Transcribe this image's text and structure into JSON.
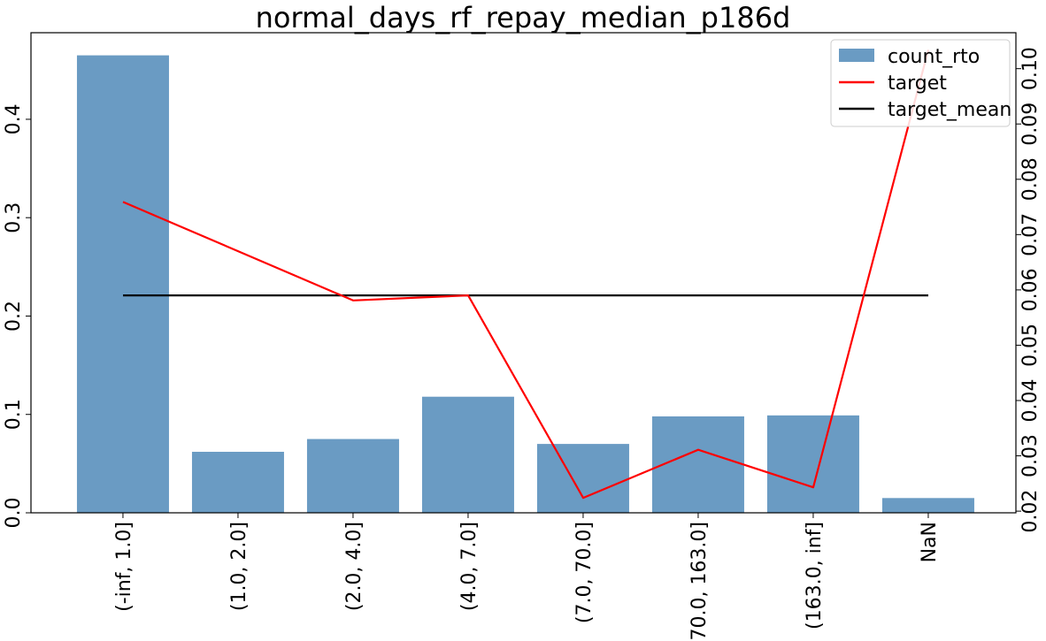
{
  "chart_data": {
    "type": "bar",
    "title": "normal_days_rf_repay_median_p186d",
    "xlabel": "",
    "ylabel": "",
    "y2label": "",
    "categories": [
      "(-inf, 1.0]",
      "(1.0, 2.0]",
      "(2.0, 4.0]",
      "(4.0, 7.0]",
      "(7.0, 70.0]",
      "(70.0, 163.0]",
      "(163.0, inf]",
      "NaN"
    ],
    "ylim": [
      0,
      0.488
    ],
    "y_ticks": [
      0,
      0.1,
      0.2,
      0.3,
      0.4
    ],
    "y_tick_labels": [
      "0.0",
      "0.1",
      "0.2",
      "0.3",
      "0.4"
    ],
    "y2lim": [
      0.0197,
      0.1065
    ],
    "y2_ticks": [
      0.02,
      0.03,
      0.04,
      0.05,
      0.06,
      0.07,
      0.08,
      0.09,
      0.1
    ],
    "y2_tick_labels": [
      "0.02",
      "0.03",
      "0.04",
      "0.05",
      "0.06",
      "0.07",
      "0.08",
      "0.09",
      "0.10"
    ],
    "grid": false,
    "legend_position": "top-right",
    "series": [
      {
        "name": "count_rto",
        "type": "bar",
        "axis": "left",
        "color": "#6a9bc3",
        "values": [
          0.465,
          0.062,
          0.075,
          0.118,
          0.07,
          0.098,
          0.099,
          0.015
        ]
      },
      {
        "name": "target",
        "type": "line",
        "axis": "right",
        "color": "#ff0000",
        "values": [
          0.0759,
          null,
          0.0581,
          0.059,
          0.0224,
          0.0311,
          0.0243,
          0.1034
        ]
      },
      {
        "name": "target_mean",
        "type": "line",
        "axis": "right",
        "color": "#000000",
        "values": [
          0.059,
          0.059,
          0.059,
          0.059,
          0.059,
          0.059,
          0.059,
          0.059
        ]
      }
    ]
  }
}
